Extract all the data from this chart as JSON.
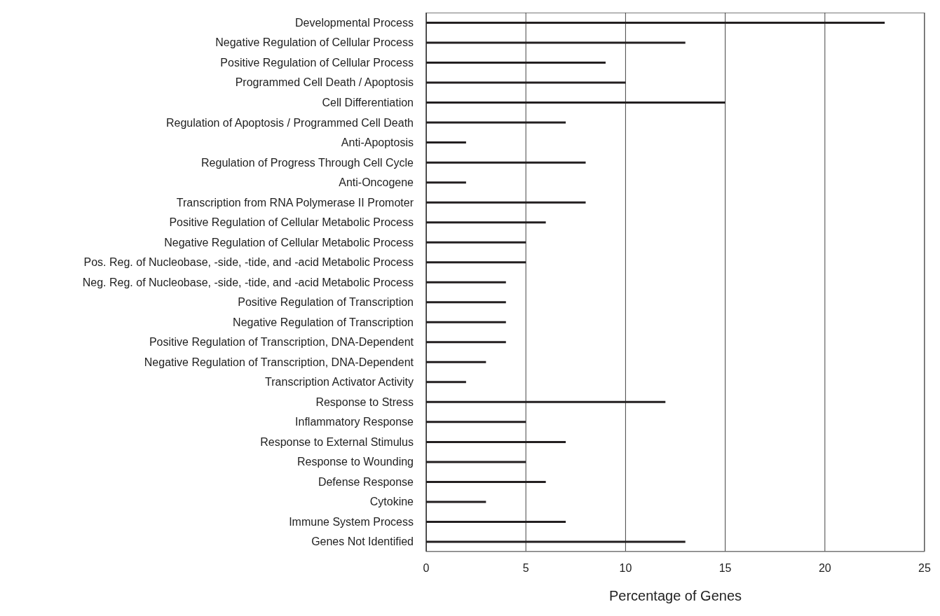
{
  "chart_data": {
    "type": "bar",
    "orientation": "horizontal",
    "xlabel": "Percentage of Genes",
    "categories": [
      "Developmental Process",
      "Negative Regulation of Cellular Process",
      "Positive Regulation of Cellular Process",
      "Programmed Cell Death / Apoptosis",
      "Cell Differentiation",
      "Regulation of Apoptosis / Programmed Cell Death",
      "Anti-Apoptosis",
      "Regulation of Progress Through Cell Cycle",
      "Anti-Oncogene",
      "Transcription from RNA Polymerase II Promoter",
      "Positive Regulation of Cellular Metabolic Process",
      "Negative Regulation of Cellular Metabolic Process",
      "Pos. Reg. of Nucleobase, -side, -tide, and -acid Metabolic Process",
      "Neg. Reg. of Nucleobase, -side, -tide, and -acid Metabolic Process",
      "Positive Regulation of Transcription",
      "Negative Regulation of Transcription",
      "Positive Regulation of Transcription, DNA-Dependent",
      "Negative Regulation of Transcription, DNA-Dependent",
      "Transcription Activator Activity",
      "Response to Stress",
      "Inflammatory Response",
      "Response to External Stimulus",
      "Response to Wounding",
      "Defense Response",
      "Cytokine",
      "Immune System Process",
      "Genes Not Identified"
    ],
    "values": [
      23,
      13,
      9,
      10,
      15,
      7,
      2,
      8,
      2,
      8,
      6,
      5,
      5,
      4,
      4,
      4,
      4,
      3,
      2,
      12,
      5,
      7,
      5,
      6,
      3,
      7,
      13
    ],
    "color": "#231f20",
    "xlim": [
      0,
      25
    ],
    "xticks": [
      0,
      5,
      10,
      15,
      20,
      25
    ],
    "grid": "x"
  }
}
